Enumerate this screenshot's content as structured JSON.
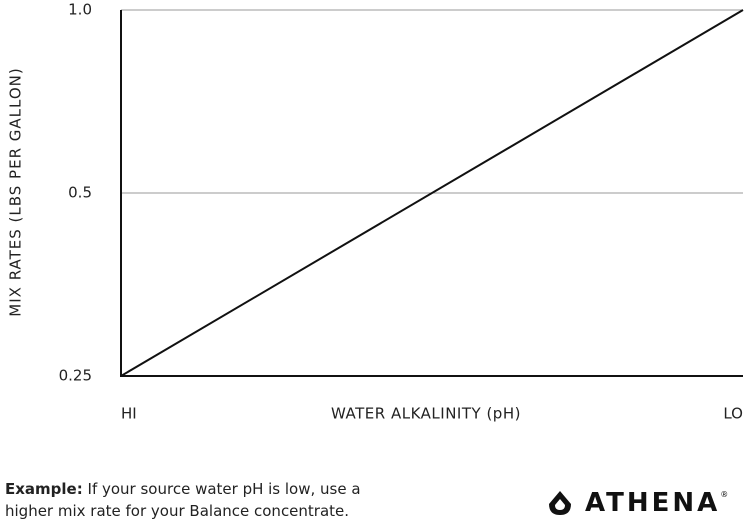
{
  "chart_data": {
    "type": "line",
    "y_label": "MIX RATES (LBS PER GALLON)",
    "x_label": "WATER ALKALINITY (pH)",
    "categories": [
      "HI",
      "LO"
    ],
    "values": [
      0.25,
      1
    ],
    "color": "#111111",
    "ylim": [
      0.25,
      1
    ],
    "yticks": [
      0.25,
      0.5,
      {
        "value": 1,
        "label": "1.0"
      }
    ],
    "log_y": true,
    "grid": true
  },
  "note": {
    "label": "Example:",
    "text": "If your source water pH is low, use a higher mix rate for your Balance concentrate."
  },
  "brand": {
    "name": "ATHENA",
    "mark": "®"
  }
}
